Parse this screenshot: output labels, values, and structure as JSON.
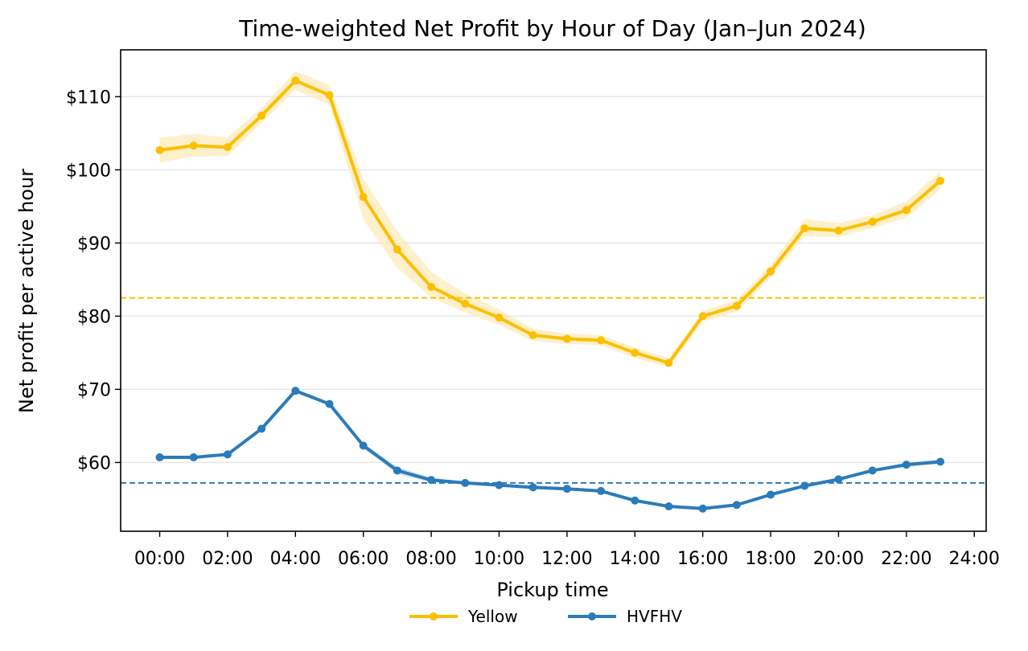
{
  "chart_data": {
    "type": "line",
    "title": "Time-weighted Net Profit by Hour of Day (Jan–Jun 2024)",
    "xlabel": "Pickup time",
    "ylabel": "Net profit per active hour",
    "x_ticks": [
      "00:00",
      "02:00",
      "04:00",
      "06:00",
      "08:00",
      "10:00",
      "12:00",
      "14:00",
      "16:00",
      "18:00",
      "20:00",
      "22:00",
      "24:00"
    ],
    "y_ticks": [
      "$60",
      "$70",
      "$80",
      "$90",
      "$100",
      "$110"
    ],
    "x_hours": [
      0,
      1,
      2,
      3,
      4,
      5,
      6,
      7,
      8,
      9,
      10,
      11,
      12,
      13,
      14,
      15,
      16,
      17,
      18,
      19,
      20,
      21,
      22,
      23
    ],
    "xlim": [
      -1.15,
      24.35
    ],
    "ylim": [
      50.6,
      116.4
    ],
    "grid": "horizontal",
    "legend_position": "bottom-center",
    "series": [
      {
        "name": "Yellow",
        "color": "#fbbf00",
        "band_color": "#fdebb8",
        "mean_line": 82.5,
        "values": [
          102.7,
          103.3,
          103.1,
          107.4,
          112.2,
          110.2,
          96.3,
          89.1,
          84.0,
          81.7,
          79.8,
          77.4,
          76.9,
          76.7,
          75.0,
          73.6,
          80.0,
          81.4,
          86.1,
          92.0,
          91.7,
          92.9,
          94.5,
          98.5
        ],
        "band_lower": [
          101.0,
          101.8,
          101.9,
          106.4,
          110.9,
          108.9,
          93.2,
          86.6,
          82.5,
          80.5,
          78.8,
          76.6,
          76.2,
          76.0,
          74.3,
          73.0,
          79.2,
          80.6,
          85.3,
          90.9,
          90.8,
          92.0,
          93.4,
          97.3
        ],
        "band_upper": [
          104.4,
          104.9,
          104.4,
          108.5,
          113.5,
          111.6,
          98.8,
          91.6,
          86.0,
          83.1,
          80.9,
          78.3,
          77.6,
          77.4,
          75.7,
          74.2,
          80.7,
          82.2,
          87.0,
          93.3,
          92.7,
          93.8,
          95.7,
          99.8
        ]
      },
      {
        "name": "HVFHV",
        "color": "#2b7bba",
        "band_color": "#c3d9eb",
        "mean_line": 57.2,
        "values": [
          60.7,
          60.7,
          61.1,
          64.6,
          69.8,
          68.0,
          62.3,
          58.9,
          57.6,
          57.2,
          56.9,
          56.6,
          56.4,
          56.1,
          54.8,
          54.0,
          53.7,
          54.2,
          55.6,
          56.8,
          57.7,
          58.9,
          59.7,
          60.1
        ],
        "band_lower": [
          60.5,
          60.5,
          60.9,
          64.4,
          69.6,
          67.8,
          62.0,
          58.4,
          57.3,
          57.0,
          56.7,
          56.4,
          56.2,
          55.9,
          54.6,
          53.8,
          53.5,
          54.0,
          55.4,
          56.6,
          57.5,
          58.7,
          59.4,
          59.8
        ],
        "band_upper": [
          60.9,
          60.9,
          61.3,
          64.8,
          70.0,
          68.2,
          62.6,
          59.4,
          57.9,
          57.4,
          57.1,
          56.8,
          56.6,
          56.3,
          55.0,
          54.2,
          53.9,
          54.4,
          55.8,
          57.0,
          57.9,
          59.1,
          60.0,
          60.4
        ]
      }
    ]
  }
}
